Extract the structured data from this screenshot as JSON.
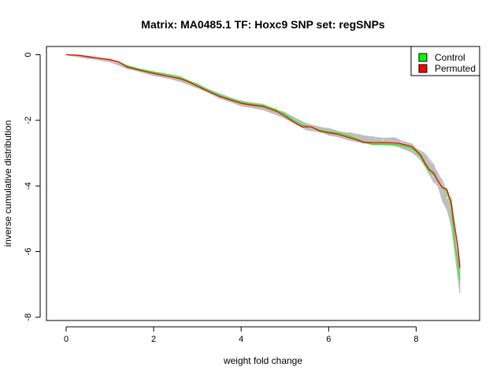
{
  "chart_data": {
    "type": "line",
    "title": "Matrix: MA0485.1 TF: Hoxc9 SNP set: regSNPs",
    "xlabel": "weight fold change",
    "ylabel": "inverse cumulative distribution",
    "xlim": [
      -0.45,
      9.45
    ],
    "ylim": [
      -8.1,
      0.25
    ],
    "x_ticks": [
      0,
      2,
      4,
      6,
      8
    ],
    "y_ticks": [
      0,
      -2,
      -4,
      -6,
      -8
    ],
    "x_tick_labels": [
      "0",
      "2",
      "4",
      "6",
      "8"
    ],
    "y_tick_labels": [
      "0",
      "-2",
      "-4",
      "-6",
      "-8"
    ],
    "grid": false,
    "legend_position": "top-right",
    "legend": [
      {
        "label": "Control",
        "color": "#00ff00"
      },
      {
        "label": "Permuted",
        "color": "#ff0000"
      }
    ],
    "background_series": {
      "name": "permutations",
      "color": "#bebebe",
      "count": 40,
      "x": [
        0,
        0.5,
        1.0,
        1.4,
        2.0,
        2.5,
        3.0,
        3.5,
        4.0,
        4.5,
        5.0,
        5.5,
        6.0,
        6.5,
        7.0,
        7.5,
        7.9,
        8.2,
        8.4,
        8.6,
        8.8,
        9.0
      ],
      "mean": [
        0,
        -0.08,
        -0.18,
        -0.38,
        -0.58,
        -0.72,
        -0.95,
        -1.25,
        -1.48,
        -1.6,
        -1.85,
        -2.2,
        -2.35,
        -2.5,
        -2.62,
        -2.65,
        -2.85,
        -3.2,
        -3.6,
        -4.1,
        -4.8,
        -6.8
      ]
    },
    "series": [
      {
        "name": "Control",
        "color": "#00ff00",
        "x": [
          0,
          0.3,
          0.6,
          1.0,
          1.2,
          1.4,
          1.7,
          2.0,
          2.3,
          2.6,
          2.8,
          3.0,
          3.3,
          3.5,
          3.8,
          4.0,
          4.2,
          4.5,
          4.8,
          5.0,
          5.2,
          5.4,
          5.6,
          5.8,
          6.0,
          6.2,
          6.4,
          6.6,
          6.8,
          7.0,
          7.3,
          7.6,
          7.9,
          8.0,
          8.1,
          8.2,
          8.3,
          8.4,
          8.5,
          8.6,
          8.7,
          8.8,
          8.85,
          8.9,
          8.95,
          9.0
        ],
        "values": [
          0,
          -0.02,
          -0.08,
          -0.15,
          -0.22,
          -0.35,
          -0.45,
          -0.53,
          -0.6,
          -0.68,
          -0.8,
          -0.93,
          -1.12,
          -1.24,
          -1.37,
          -1.45,
          -1.5,
          -1.54,
          -1.68,
          -1.82,
          -2.0,
          -2.15,
          -2.2,
          -2.3,
          -2.35,
          -2.38,
          -2.45,
          -2.55,
          -2.65,
          -2.73,
          -2.73,
          -2.75,
          -2.85,
          -2.95,
          -3.1,
          -3.35,
          -3.55,
          -3.65,
          -3.85,
          -4.05,
          -4.15,
          -4.6,
          -5.3,
          -5.9,
          -6.3,
          -6.85
        ]
      },
      {
        "name": "Permuted",
        "color": "#ff0000",
        "x": [
          0,
          0.3,
          0.6,
          1.0,
          1.2,
          1.4,
          1.7,
          2.0,
          2.3,
          2.6,
          2.8,
          3.0,
          3.3,
          3.5,
          3.8,
          4.0,
          4.2,
          4.5,
          4.8,
          5.0,
          5.2,
          5.4,
          5.6,
          5.8,
          6.0,
          6.2,
          6.4,
          6.6,
          6.8,
          7.0,
          7.3,
          7.6,
          7.9,
          8.0,
          8.1,
          8.2,
          8.3,
          8.4,
          8.5,
          8.6,
          8.7,
          8.8,
          8.85,
          8.9,
          8.95,
          9.0
        ],
        "values": [
          0,
          -0.02,
          -0.08,
          -0.15,
          -0.22,
          -0.38,
          -0.48,
          -0.57,
          -0.65,
          -0.73,
          -0.83,
          -0.96,
          -1.15,
          -1.27,
          -1.4,
          -1.48,
          -1.53,
          -1.58,
          -1.72,
          -1.87,
          -2.05,
          -2.2,
          -2.2,
          -2.33,
          -2.38,
          -2.42,
          -2.5,
          -2.58,
          -2.67,
          -2.68,
          -2.68,
          -2.7,
          -2.8,
          -2.92,
          -3.05,
          -3.3,
          -3.5,
          -3.6,
          -3.85,
          -4.05,
          -4.1,
          -4.5,
          -5.0,
          -5.4,
          -5.8,
          -6.5
        ]
      }
    ]
  }
}
